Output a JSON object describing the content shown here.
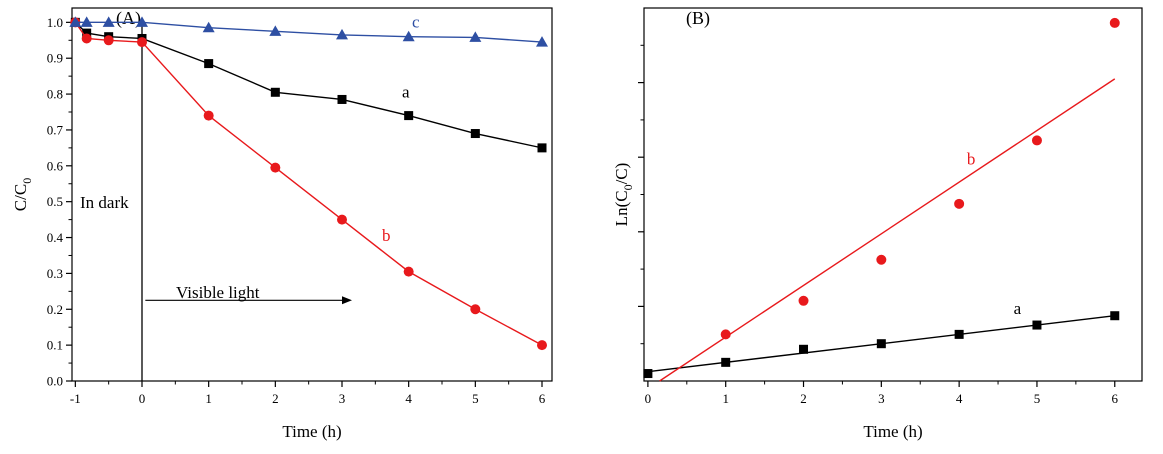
{
  "chart_data": [
    {
      "panel_label": "(A)",
      "type": "line",
      "xlabel": "Time (h)",
      "ylabel_main": "C/C",
      "ylabel_sub": "0",
      "xlim": [
        -1.05,
        6.15
      ],
      "ylim": [
        0,
        1.04
      ],
      "xticks": [
        -1,
        0,
        1,
        2,
        3,
        4,
        5,
        6
      ],
      "xtick_labels": [
        "-1",
        "0",
        "1",
        "2",
        "3",
        "4",
        "5",
        "6"
      ],
      "yticks": [
        0,
        0.1,
        0.2,
        0.3,
        0.4,
        0.5,
        0.6,
        0.7,
        0.8,
        0.9,
        1.0
      ],
      "ytick_labels": [
        "0.0",
        "0.1",
        "0.2",
        "0.3",
        "0.4",
        "0.5",
        "0.6",
        "0.7",
        "0.8",
        "0.9",
        "1.0"
      ],
      "annotations": {
        "dark": "In dark",
        "light": "Visible light",
        "a": "a",
        "b": "b",
        "c": "c"
      },
      "divider_x": 0,
      "arrow": {
        "x_from": 0.05,
        "x_to": 3.15,
        "y": 0.225
      },
      "series": [
        {
          "key": "a",
          "color": "#000000",
          "marker": "square",
          "x": [
            -1,
            -0.83,
            -0.5,
            0,
            1,
            2,
            3,
            4,
            5,
            6
          ],
          "y": [
            1.0,
            0.97,
            0.96,
            0.955,
            0.885,
            0.805,
            0.785,
            0.74,
            0.69,
            0.65
          ],
          "label_at": [
            3.9,
            0.79
          ]
        },
        {
          "key": "b",
          "color": "#e8191c",
          "marker": "circle",
          "x": [
            -1,
            -0.83,
            -0.5,
            0,
            1,
            2,
            3,
            4,
            5,
            6
          ],
          "y": [
            1.0,
            0.955,
            0.95,
            0.945,
            0.74,
            0.595,
            0.45,
            0.305,
            0.2,
            0.1
          ],
          "label_at": [
            3.6,
            0.39
          ]
        },
        {
          "key": "c",
          "color": "#2e4fa3",
          "marker": "triangle",
          "x": [
            -1,
            -0.83,
            -0.5,
            0,
            1,
            2,
            3,
            4,
            5,
            6
          ],
          "y": [
            1.0,
            1.0,
            1.0,
            1.0,
            0.985,
            0.975,
            0.965,
            0.96,
            0.958,
            0.945
          ],
          "label_at": [
            4.05,
            0.985
          ]
        }
      ]
    },
    {
      "panel_label": "(B)",
      "type": "scatter",
      "xlabel": "Time (h)",
      "ylabel_main": "Ln(C",
      "ylabel_sub": "0",
      "ylabel_tail": "/C)",
      "xlim": [
        -0.05,
        6.35
      ],
      "ylim": [
        0,
        1.0
      ],
      "xticks": [
        0,
        1,
        2,
        3,
        4,
        5,
        6
      ],
      "xtick_labels": [
        "0",
        "1",
        "2",
        "3",
        "4",
        "5",
        "6"
      ],
      "yticks": [
        0.2,
        0.4,
        0.6,
        0.8
      ],
      "annotations": {
        "a": "a",
        "b": "b"
      },
      "series": [
        {
          "key": "a",
          "color": "#000000",
          "marker": "square",
          "x": [
            0,
            1,
            2,
            3,
            4,
            5,
            6
          ],
          "y": [
            0.02,
            0.05,
            0.085,
            0.1,
            0.125,
            0.15,
            0.175
          ],
          "fit": [
            [
              0,
              0.025
            ],
            [
              6,
              0.175
            ]
          ],
          "label_at": [
            4.7,
            0.18
          ]
        },
        {
          "key": "b",
          "color": "#e8191c",
          "marker": "circle",
          "x": [
            1,
            2,
            3,
            4,
            5,
            6
          ],
          "y": [
            0.125,
            0.215,
            0.325,
            0.475,
            0.645,
            0.96
          ],
          "fit": [
            [
              0.15,
              0
            ],
            [
              6,
              0.81
            ]
          ],
          "label_at": [
            4.1,
            0.58
          ]
        }
      ]
    }
  ]
}
